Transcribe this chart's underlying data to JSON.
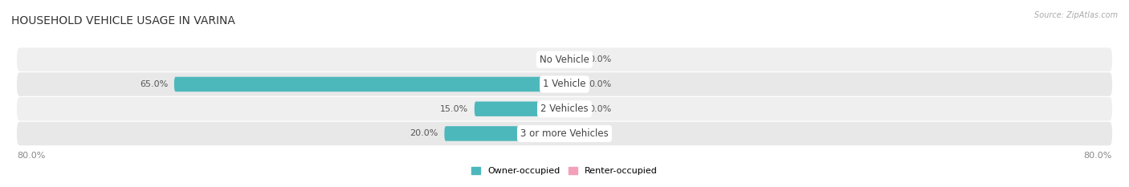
{
  "title": "HOUSEHOLD VEHICLE USAGE IN VARINA",
  "source": "Source: ZipAtlas.com",
  "categories": [
    "No Vehicle",
    "1 Vehicle",
    "2 Vehicles",
    "3 or more Vehicles"
  ],
  "owner_values": [
    0.0,
    65.0,
    15.0,
    20.0
  ],
  "renter_values": [
    0.0,
    0.0,
    0.0,
    0.0
  ],
  "owner_color": "#4db8bc",
  "renter_color": "#f4a0b8",
  "row_bg_even": "#efefef",
  "row_bg_odd": "#e8e8e8",
  "max_value": 80.0,
  "min_bar_display": 3.0,
  "title_fontsize": 10,
  "label_fontsize": 8,
  "cat_fontsize": 8.5,
  "figsize": [
    14.06,
    2.33
  ],
  "dpi": 100
}
